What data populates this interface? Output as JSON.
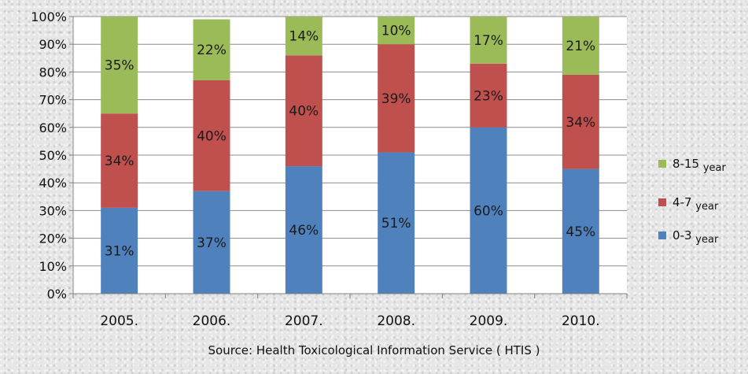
{
  "chart_data": {
    "type": "bar",
    "stacked": true,
    "categories": [
      "2005.",
      "2006.",
      "2007.",
      "2008.",
      "2009.",
      "2010."
    ],
    "series": [
      {
        "name": "0-3 year",
        "color": "#4f81bd",
        "values": [
          31,
          37,
          46,
          51,
          60,
          45
        ],
        "labels": [
          "31%",
          "37%",
          "46%",
          "51%",
          "60%",
          "45%"
        ]
      },
      {
        "name": "4-7 year",
        "color": "#c0504d",
        "values": [
          34,
          40,
          40,
          39,
          23,
          34
        ],
        "labels": [
          "34%",
          "40%",
          "40%",
          "39%",
          "23%",
          "34%"
        ]
      },
      {
        "name": "8-15 year",
        "color": "#9bbb59",
        "values": [
          35,
          22,
          14,
          10,
          17,
          21
        ],
        "labels": [
          "35%",
          "22%",
          "14%",
          "10%",
          "17%",
          "21%"
        ]
      }
    ],
    "legend": [
      {
        "main": "8-15",
        "sub": "year",
        "color": "#9bbb59"
      },
      {
        "main": "4-7",
        "sub": "year",
        "color": "#c0504d"
      },
      {
        "main": "0-3",
        "sub": "year",
        "color": "#4f81bd"
      }
    ],
    "ylim": [
      0,
      100
    ],
    "yticks": [
      "0%",
      "10%",
      "20%",
      "30%",
      "40%",
      "50%",
      "60%",
      "70%",
      "80%",
      "90%",
      "100%"
    ],
    "grid": true,
    "legend_position": "right",
    "source": "Source: Health Toxicological Information Service ( HTIS )"
  }
}
